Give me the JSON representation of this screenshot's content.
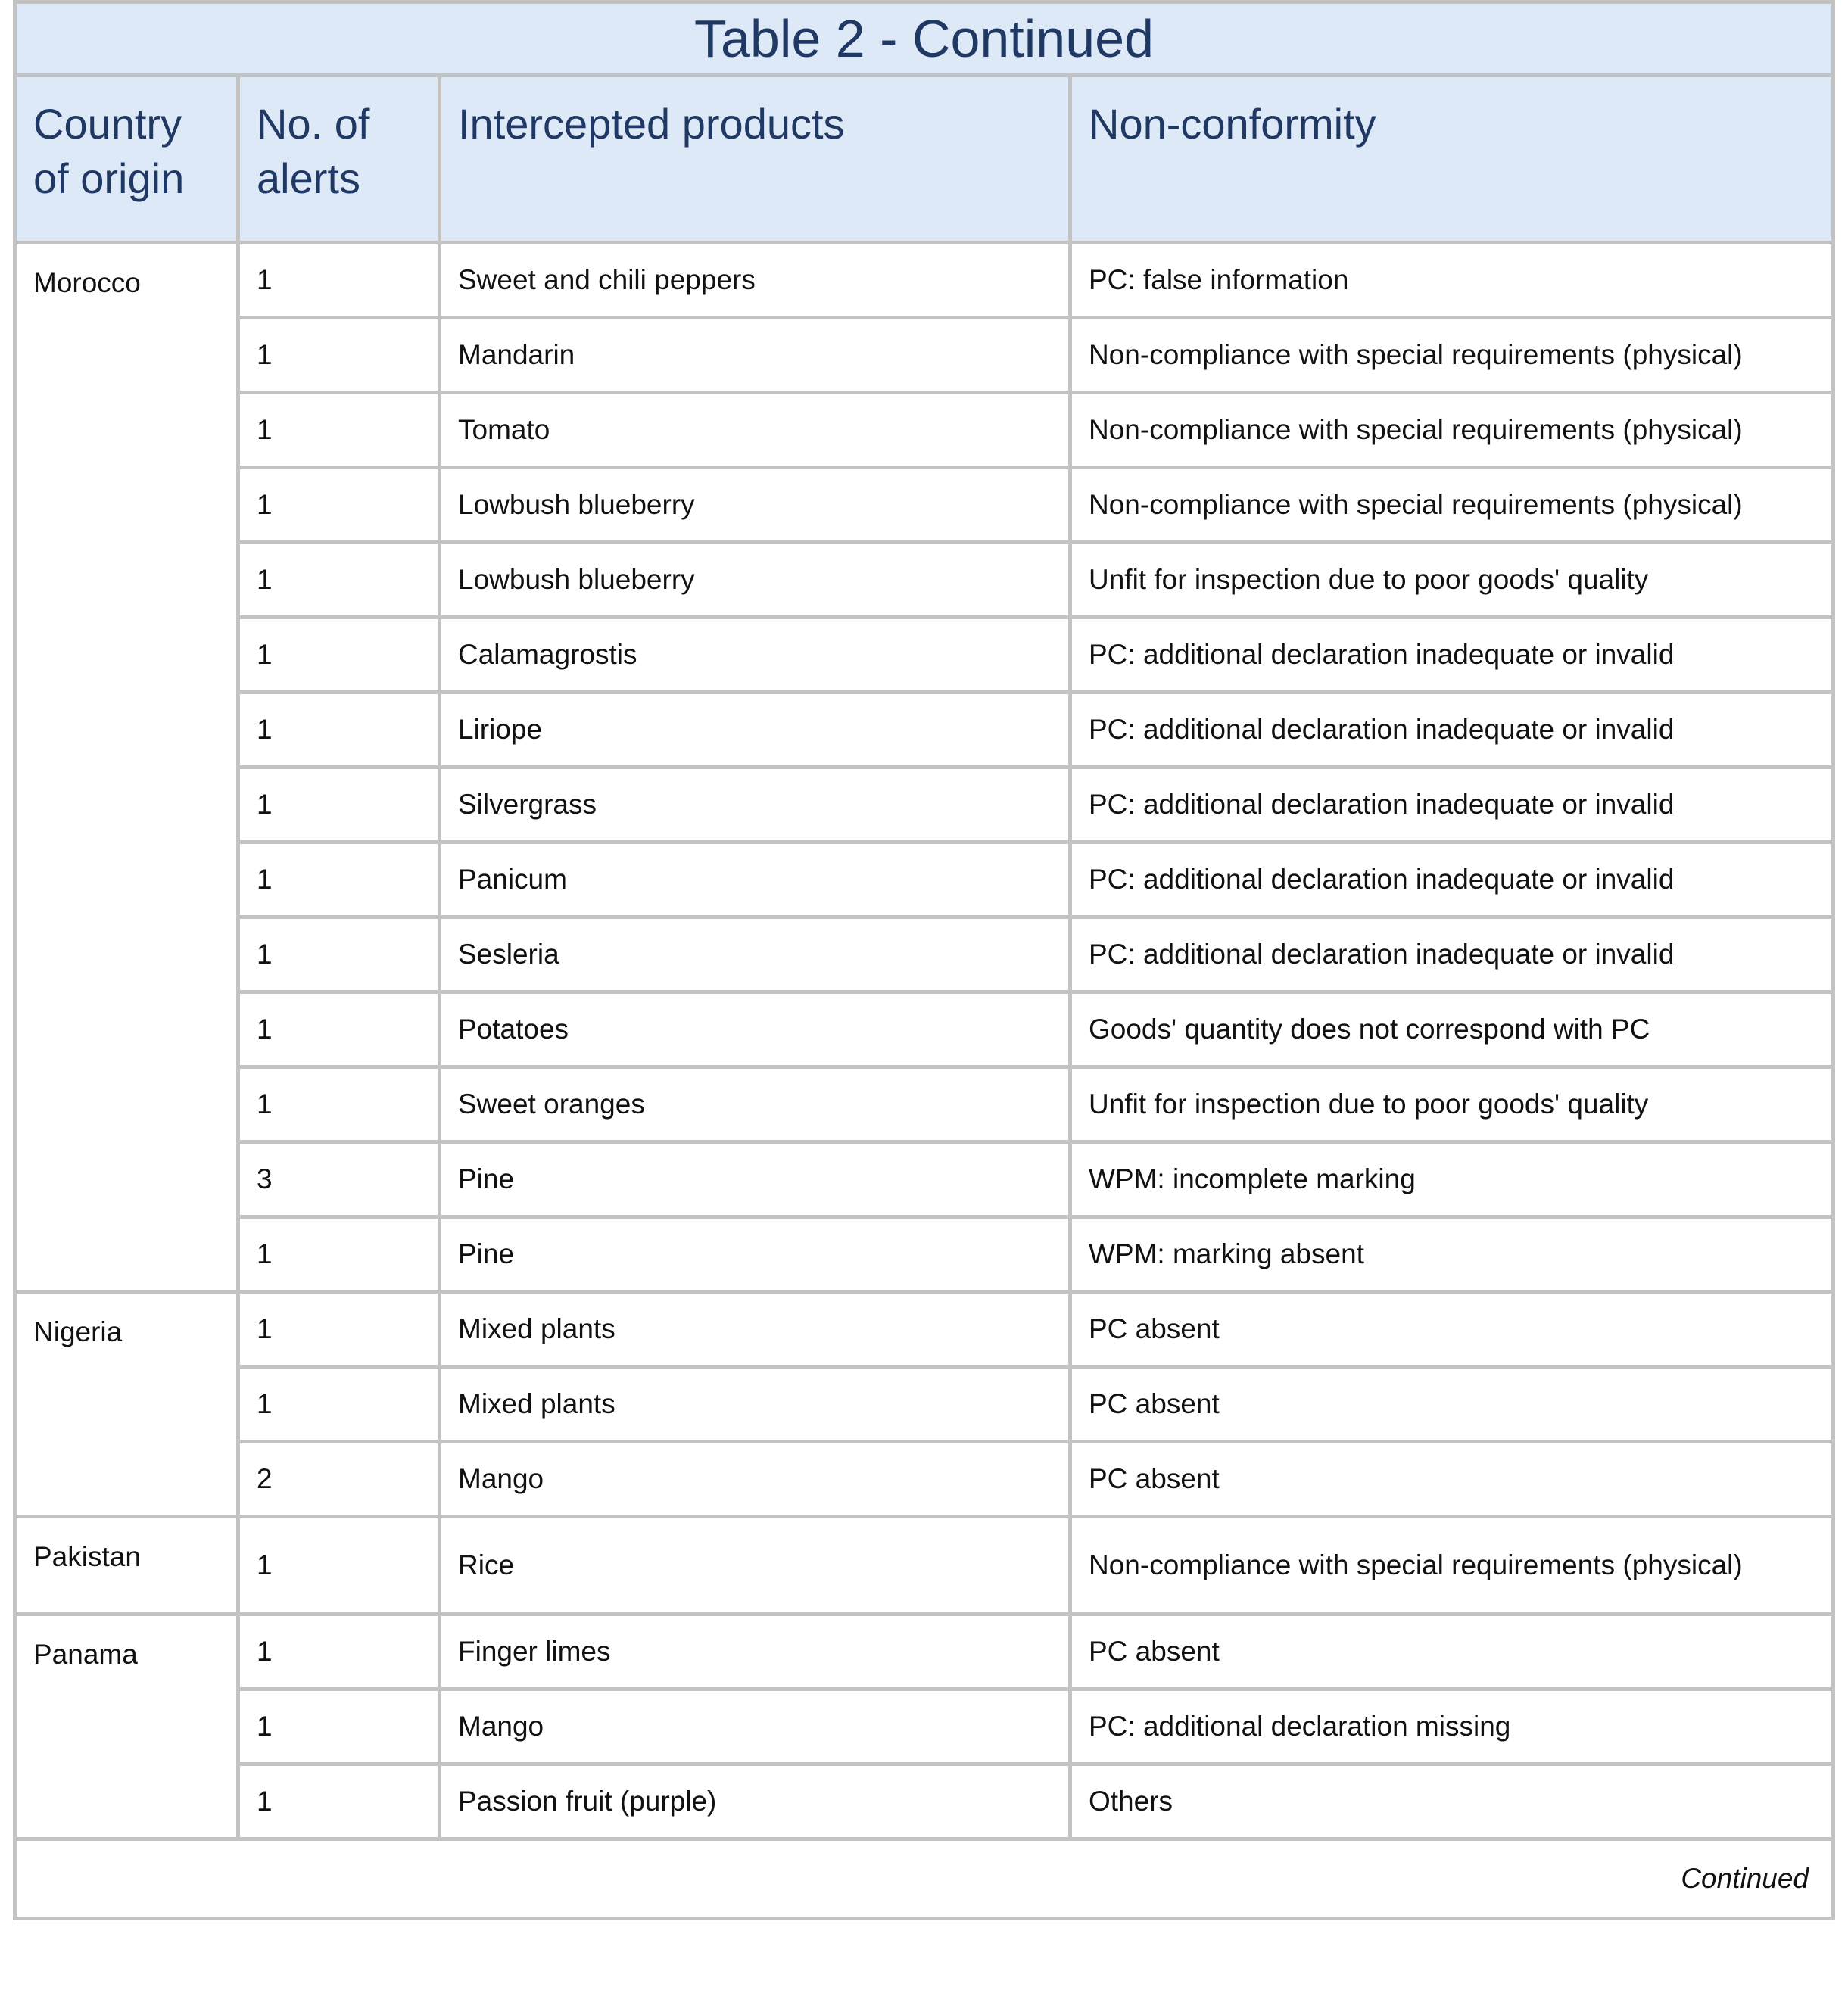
{
  "header": {
    "title": "Table 2 - Continued"
  },
  "table": {
    "columns": [
      "Country of origin",
      "No. of alerts",
      "Intercepted products",
      "Non-conformity"
    ],
    "groups": [
      {
        "country": "Morocco",
        "rows": [
          [
            1,
            "Sweet and chili peppers",
            "PC: false information"
          ],
          [
            1,
            "Mandarin",
            "Non-compliance with special requirements (physical)"
          ],
          [
            1,
            "Tomato",
            "Non-compliance with special requirements (physical)"
          ],
          [
            1,
            "Lowbush blueberry",
            "Non-compliance with special requirements (physical)"
          ],
          [
            1,
            "Lowbush blueberry",
            "Unfit for inspection due to poor goods' quality"
          ],
          [
            1,
            "Calamagrostis",
            "PC: additional declaration inadequate or invalid"
          ],
          [
            1,
            "Liriope",
            "PC: additional declaration inadequate or invalid"
          ],
          [
            1,
            "Silvergrass",
            "PC: additional declaration inadequate or invalid"
          ],
          [
            1,
            "Panicum",
            "PC: additional declaration inadequate or invalid"
          ],
          [
            1,
            "Sesleria",
            "PC: additional declaration inadequate or invalid"
          ],
          [
            1,
            "Potatoes",
            "Goods' quantity does not correspond with PC"
          ],
          [
            1,
            "Sweet oranges",
            "Unfit for inspection due to poor goods' quality"
          ],
          [
            3,
            "Pine",
            "WPM: incomplete marking"
          ],
          [
            1,
            "Pine",
            "WPM: marking absent"
          ]
        ]
      },
      {
        "country": "Nigeria",
        "rows": [
          [
            1,
            "Mixed plants",
            "PC absent"
          ],
          [
            1,
            "Mixed plants",
            "PC absent"
          ],
          [
            2,
            "Mango",
            "PC absent"
          ]
        ]
      },
      {
        "country": "Pakistan",
        "rows": [
          [
            1,
            "Rice",
            "Non-compliance with special requirements (physical)"
          ]
        ]
      },
      {
        "country": "Panama",
        "rows": [
          [
            1,
            "Finger limes",
            "PC absent"
          ],
          [
            1,
            "Mango",
            "PC: additional declaration missing"
          ],
          [
            1,
            "Passion fruit (purple)",
            "Others"
          ]
        ]
      }
    ]
  },
  "footer": {
    "note": "Continued"
  }
}
